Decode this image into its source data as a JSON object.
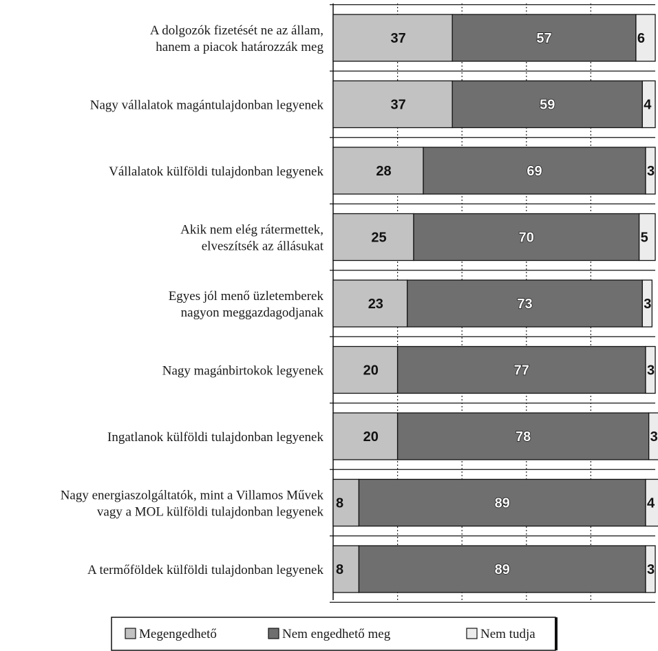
{
  "chart_data": {
    "type": "bar",
    "orientation": "horizontal",
    "stacked": true,
    "xlim": [
      0,
      100
    ],
    "grid": true,
    "legend_position": "bottom",
    "categories": [
      [
        "A dolgozók fizetését ne az állam,",
        "hanem a piacok határozzák meg"
      ],
      [
        "Nagy vállalatok magántulajdonban legyenek"
      ],
      [
        "Vállalatok külföldi tulajdonban legyenek"
      ],
      [
        "Akik nem elég rátermettek,",
        "elveszítsék az állásukat"
      ],
      [
        "Egyes jól menő üzletemberek",
        "nagyon meggazdagodjanak"
      ],
      [
        "Nagy magánbirtokok legyenek"
      ],
      [
        "Ingatlanok külföldi tulajdonban legyenek"
      ],
      [
        "Nagy energiaszolgáltatók, mint a Villamos Művek",
        "vagy a MOL külföldi tulajdonban legyenek"
      ],
      [
        "A termőföldek külföldi tulajdonban legyenek"
      ]
    ],
    "series": [
      {
        "name": "Megengedhető",
        "color": "#c2c2c2",
        "values": [
          37,
          37,
          28,
          25,
          23,
          20,
          20,
          8,
          8
        ]
      },
      {
        "name": "Nem engedhető meg",
        "color": "#6f6f6f",
        "values": [
          57,
          59,
          69,
          70,
          73,
          77,
          78,
          89,
          89
        ]
      },
      {
        "name": "Nem tudja",
        "color": "#ececec",
        "values": [
          6,
          4,
          3,
          5,
          3,
          3,
          3,
          4,
          3
        ]
      }
    ]
  }
}
